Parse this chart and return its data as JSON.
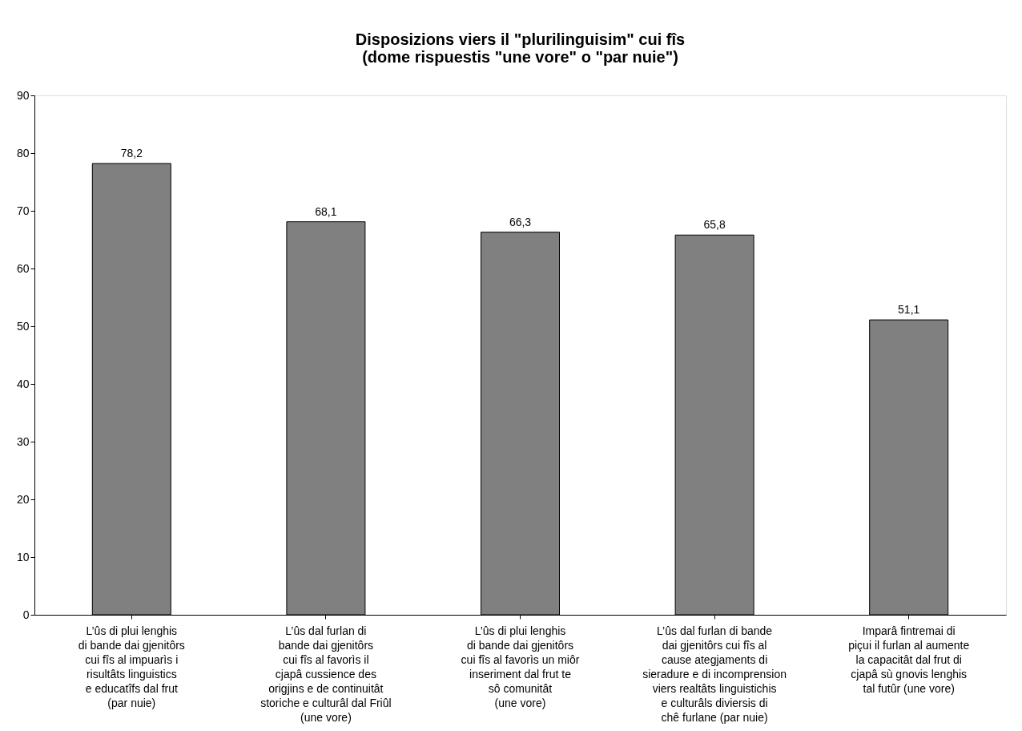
{
  "chart_data": {
    "type": "bar",
    "title": "Disposizions viers il \"plurilinguisim\" cui fîs\n(dome rispuestis \"une vore\" o \"par nuie\")",
    "categories": [
      "L’ûs di plui lenghis\ndi bande dai gjenitôrs\ncui fîs al impuarìs i\nrisultâts linguistics\ne educatîfs dal frut\n(par nuie)",
      "L’ûs dal furlan di\nbande dai gjenitôrs\ncui fîs al favorìs il\ncjapâ cussience des\norigjins e de continuitât\nstoriche e culturâl dal Friûl\n(une vore)",
      "L’ûs di plui lenghis\ndi bande dai gjenitôrs\ncui fîs al favorìs un miôr\ninseriment dal frut te\nsô comunitât\n(une vore)",
      "L’ûs dal furlan di bande\ndai gjenitôrs cui fîs al\ncause ategjaments di\nsieradure e di incomprension\nviers realtâts linguistichis\ne culturâls diviersis di\nchê furlane (par nuie)",
      "Imparâ fintremai di\npiçui il furlan al aumente\nla capacitât dal frut di\ncjapâ sù gnovis lenghis\ntal futûr (une vore)"
    ],
    "values": [
      78.2,
      68.1,
      66.3,
      65.8,
      51.1
    ],
    "value_labels": [
      "78,2",
      "68,1",
      "66,3",
      "65,8",
      "51,1"
    ],
    "color": "#808080",
    "ylim": [
      0,
      90
    ],
    "yticks": [
      0,
      10,
      20,
      30,
      40,
      50,
      60,
      70,
      80,
      90
    ],
    "grid": false
  }
}
